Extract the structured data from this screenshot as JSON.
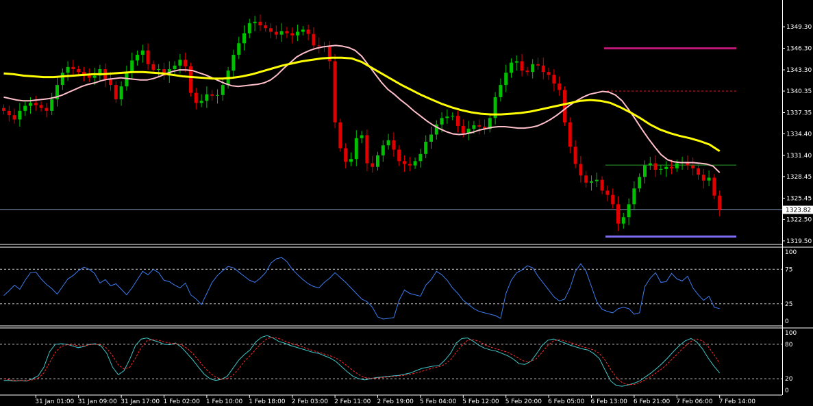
{
  "chart_data": [
    {
      "type": "candlestick",
      "title": "",
      "price_axis": {
        "ticks": [
          "1349.30",
          "1346.30",
          "1343.30",
          "1340.35",
          "1337.35",
          "1334.40",
          "1331.40",
          "1328.45",
          "1325.45",
          "1322.50",
          "1319.50"
        ],
        "tick_values": [
          1349.3,
          1346.3,
          1343.3,
          1340.35,
          1337.35,
          1334.4,
          1331.4,
          1328.45,
          1325.45,
          1322.5,
          1319.5
        ],
        "ylim": [
          1319.2,
          1351.5
        ],
        "current_price_label": "1323.82",
        "current_price": 1323.82
      },
      "time_axis": {
        "labels": [
          "31 Jan 01:00",
          "31 Jan 09:00",
          "31 Jan 17:00",
          "1 Feb 02:00",
          "1 Feb 10:00",
          "1 Feb 18:00",
          "2 Feb 03:00",
          "2 Feb 11:00",
          "2 Feb 19:00",
          "5 Feb 04:00",
          "5 Feb 12:00",
          "5 Feb 20:00",
          "6 Feb 05:00",
          "6 Feb 13:00",
          "6 Feb 21:00",
          "7 Feb 06:00",
          "7 Feb 14:00"
        ],
        "label_bar_index": [
          6,
          14,
          22,
          30,
          38,
          46,
          54,
          62,
          70,
          78,
          86,
          94,
          102,
          110,
          118,
          126,
          134
        ]
      },
      "candles_close": [
        1337.6,
        1337.0,
        1336.4,
        1337.6,
        1338.3,
        1338.7,
        1338.4,
        1338.0,
        1337.6,
        1339.2,
        1341.2,
        1342.9,
        1343.7,
        1343.4,
        1343.0,
        1342.6,
        1342.2,
        1342.5,
        1343.4,
        1342.0,
        1341.2,
        1339.2,
        1341.0,
        1343.0,
        1344.6,
        1345.4,
        1346.0,
        1344.1,
        1343.3,
        1343.4,
        1342.5,
        1343.4,
        1343.9,
        1344.7,
        1343.8,
        1340.1,
        1338.7,
        1339.0,
        1339.9,
        1339.7,
        1339.8,
        1341.2,
        1343.2,
        1345.4,
        1347.0,
        1348.4,
        1349.8,
        1350.0,
        1349.5,
        1349.1,
        1348.6,
        1348.2,
        1348.7,
        1348.4,
        1348.1,
        1348.6,
        1348.9,
        1348.3,
        1346.7,
        1346.6,
        1346.5,
        1344.5,
        1336.0,
        1332.4,
        1330.5,
        1330.9,
        1333.8,
        1334.2,
        1330.3,
        1329.8,
        1331.4,
        1332.8,
        1333.5,
        1332.2,
        1330.6,
        1330.2,
        1330.0,
        1330.6,
        1331.6,
        1333.3,
        1334.3,
        1335.7,
        1336.6,
        1336.8,
        1336.9,
        1335.5,
        1334.5,
        1335.1,
        1335.6,
        1335.4,
        1335.1,
        1336.6,
        1339.5,
        1341.2,
        1342.9,
        1344.3,
        1344.5,
        1343.2,
        1343.0,
        1344.1,
        1343.9,
        1343.0,
        1342.6,
        1341.4,
        1340.5,
        1336.0,
        1332.6,
        1330.2,
        1328.6,
        1327.6,
        1327.8,
        1328.0,
        1326.5,
        1325.9,
        1324.6,
        1321.9,
        1322.8,
        1324.6,
        1326.8,
        1328.4,
        1330.0,
        1330.3,
        1329.4,
        1329.5,
        1329.8,
        1329.6,
        1330.3,
        1330.5,
        1330.0,
        1329.6,
        1328.7,
        1327.9,
        1328.3,
        1325.8,
        1323.8
      ],
      "indicators": [
        {
          "name": "MA short",
          "color": "#ffc0cb",
          "values": [
            1339.5,
            1339.3,
            1339.1,
            1339.0,
            1339.0,
            1339.1,
            1339.2,
            1339.3,
            1339.5,
            1339.8,
            1340.2,
            1340.6,
            1341.0,
            1341.3,
            1341.5,
            1341.8,
            1342.0,
            1342.1,
            1342.2,
            1342.1,
            1342.0,
            1341.9,
            1341.9,
            1342.1,
            1342.4,
            1342.8,
            1343.1,
            1343.3,
            1343.3,
            1343.2,
            1342.9,
            1342.6,
            1342.2,
            1341.8,
            1341.4,
            1341.1,
            1341.0,
            1341.1,
            1341.2,
            1341.3,
            1341.5,
            1341.9,
            1342.6,
            1343.5,
            1344.3,
            1345.1,
            1345.6,
            1346.0,
            1346.3,
            1346.5,
            1346.6,
            1346.7,
            1346.6,
            1346.4,
            1346.0,
            1345.2,
            1344.0,
            1342.8,
            1341.6,
            1340.6,
            1339.9,
            1339.1,
            1338.4,
            1337.6,
            1336.9,
            1336.2,
            1335.6,
            1335.1,
            1334.7,
            1334.4,
            1334.3,
            1334.4,
            1334.6,
            1334.9,
            1335.1,
            1335.3,
            1335.4,
            1335.4,
            1335.3,
            1335.2,
            1335.2,
            1335.3,
            1335.5,
            1335.9,
            1336.4,
            1337.0,
            1337.7,
            1338.4,
            1339.0,
            1339.5,
            1339.9,
            1340.1,
            1340.3,
            1340.2,
            1339.8,
            1339.0,
            1337.8,
            1336.5,
            1335.1,
            1333.8,
            1332.6,
            1331.5,
            1330.8,
            1330.5,
            1330.4,
            1330.4,
            1330.4,
            1330.3,
            1330.2,
            1329.9,
            1329.0
          ]
        },
        {
          "name": "MA long",
          "color": "#ffff00",
          "values": [
            1342.8,
            1342.7,
            1342.5,
            1342.4,
            1342.3,
            1342.3,
            1342.4,
            1342.5,
            1342.6,
            1342.7,
            1342.7,
            1342.8,
            1342.9,
            1343.0,
            1343.0,
            1342.9,
            1342.8,
            1342.6,
            1342.4,
            1342.3,
            1342.2,
            1342.1,
            1342.1,
            1342.2,
            1342.4,
            1342.7,
            1343.1,
            1343.5,
            1343.9,
            1344.2,
            1344.5,
            1344.7,
            1344.9,
            1345.0,
            1345.0,
            1344.9,
            1344.4,
            1343.6,
            1342.8,
            1342.0,
            1341.2,
            1340.5,
            1339.8,
            1339.2,
            1338.6,
            1338.1,
            1337.7,
            1337.4,
            1337.2,
            1337.1,
            1337.1,
            1337.2,
            1337.3,
            1337.5,
            1337.8,
            1338.1,
            1338.4,
            1338.7,
            1339.0,
            1339.1,
            1339.0,
            1338.7,
            1338.1,
            1337.4,
            1336.6,
            1335.7,
            1335.0,
            1334.5,
            1334.1,
            1333.8,
            1333.4,
            1332.9,
            1332.0
          ]
        }
      ],
      "lines": [
        {
          "name": "upper level",
          "color": "#c0187a",
          "value": 1346.3
        },
        {
          "name": "dashed level",
          "color": "#c8202a",
          "value": 1340.35
        },
        {
          "name": "green level",
          "color": "#2e9e2e",
          "value": 1330.05
        },
        {
          "name": "lower level",
          "color": "#7b6cf0",
          "value": 1320.1
        }
      ]
    },
    {
      "type": "line",
      "title": "",
      "ylim": [
        0,
        100
      ],
      "ticks": [
        "100",
        "75",
        "25",
        "0"
      ],
      "tick_values": [
        100,
        75,
        25,
        0
      ],
      "levels": [
        75,
        25
      ],
      "series": [
        {
          "color": "#3d7cf0",
          "values": [
            37,
            44,
            52,
            46,
            59,
            70,
            71,
            61,
            53,
            47,
            39,
            50,
            61,
            66,
            73,
            78,
            75,
            69,
            55,
            60,
            51,
            54,
            46,
            38,
            48,
            60,
            72,
            67,
            75,
            70,
            59,
            57,
            52,
            48,
            55,
            38,
            32,
            24,
            40,
            56,
            66,
            73,
            79,
            77,
            71,
            65,
            59,
            56,
            62,
            70,
            84,
            90,
            92,
            86,
            75,
            67,
            60,
            54,
            50,
            48,
            56,
            62,
            70,
            63,
            56,
            48,
            40,
            32,
            28,
            20,
            6,
            3,
            4,
            5,
            30,
            45,
            40,
            38,
            36,
            52,
            60,
            72,
            67,
            59,
            48,
            40,
            30,
            24,
            18,
            14,
            12,
            10,
            8,
            4,
            40,
            59,
            70,
            74,
            80,
            77,
            65,
            55,
            45,
            35,
            29,
            32,
            48,
            72,
            83,
            72,
            50,
            28,
            17,
            14,
            12,
            18,
            20,
            18,
            10,
            12,
            50,
            62,
            70,
            56,
            57,
            69,
            61,
            58,
            65,
            48,
            38,
            30,
            36,
            20,
            18
          ]
        }
      ]
    },
    {
      "type": "line",
      "title": "",
      "ylim": [
        0,
        100
      ],
      "ticks": [
        "100",
        "80",
        "20",
        "0"
      ],
      "tick_values": [
        100,
        80,
        20,
        0
      ],
      "levels": [
        80,
        20
      ],
      "series": [
        {
          "color": "#40c8c8",
          "values": [
            17,
            17,
            16,
            17,
            16,
            20,
            25,
            40,
            67,
            80,
            81,
            80,
            77,
            74,
            76,
            80,
            81,
            77,
            64,
            40,
            27,
            34,
            54,
            78,
            89,
            91,
            87,
            84,
            80,
            79,
            82,
            75,
            64,
            53,
            40,
            28,
            20,
            17,
            19,
            24,
            38,
            52,
            62,
            70,
            84,
            92,
            95,
            91,
            85,
            82,
            78,
            75,
            72,
            69,
            66,
            64,
            60,
            56,
            50,
            41,
            32,
            24,
            20,
            18,
            20,
            22,
            23,
            24,
            25,
            26,
            28,
            30,
            34,
            38,
            40,
            42,
            43,
            52,
            64,
            82,
            90,
            91,
            85,
            78,
            73,
            70,
            68,
            64,
            60,
            54,
            46,
            45,
            50,
            63,
            78,
            87,
            89,
            86,
            82,
            78,
            75,
            72,
            70,
            64,
            55,
            35,
            16,
            8,
            7,
            9,
            12,
            16,
            23,
            30,
            38,
            47,
            57,
            68,
            78,
            86,
            90,
            84,
            72,
            56,
            42,
            30
          ]
        },
        {
          "color": "#ff2a2a",
          "values": [
            20,
            18,
            17,
            17,
            17,
            18,
            21,
            30,
            48,
            66,
            76,
            79,
            79,
            77,
            77,
            79,
            80,
            79,
            73,
            60,
            44,
            37,
            40,
            56,
            74,
            86,
            88,
            87,
            84,
            82,
            81,
            79,
            73,
            64,
            52,
            40,
            30,
            23,
            19,
            20,
            26,
            37,
            50,
            60,
            71,
            82,
            90,
            92,
            90,
            86,
            82,
            79,
            76,
            72,
            69,
            66,
            63,
            60,
            56,
            50,
            42,
            34,
            27,
            22,
            21,
            21,
            22,
            23,
            24,
            25,
            26,
            28,
            30,
            33,
            36,
            39,
            41,
            45,
            53,
            66,
            78,
            87,
            88,
            85,
            79,
            75,
            72,
            69,
            66,
            61,
            55,
            50,
            50,
            55,
            66,
            78,
            86,
            88,
            86,
            83,
            79,
            76,
            73,
            70,
            64,
            52,
            36,
            22,
            13,
            10,
            10,
            13,
            18,
            24,
            31,
            38,
            47,
            57,
            67,
            77,
            85,
            89,
            86,
            76,
            62,
            47
          ]
        }
      ]
    }
  ]
}
